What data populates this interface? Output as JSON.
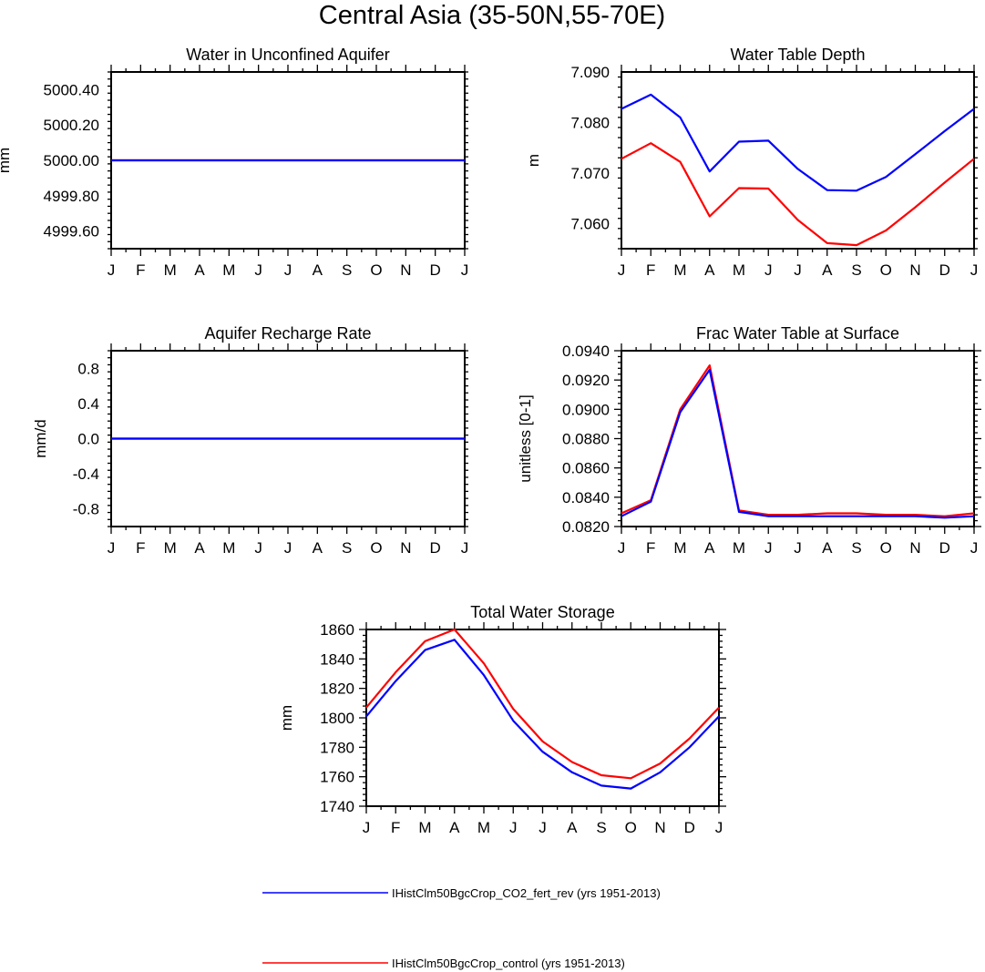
{
  "main_title": "Central Asia (35-50N,55-70E)",
  "colors": {
    "fert_rev": "#0000ff",
    "control": "#ff0000"
  },
  "legend": [
    {
      "label": "IHistClm50BgcCrop_CO2_fert_rev (yrs 1951-2013)",
      "color": "#0000ff"
    },
    {
      "label": "IHistClm50BgcCrop_control (yrs 1951-2013)",
      "color": "#ff0000"
    }
  ],
  "chart_data": [
    {
      "type": "line",
      "title": "Water in Unconfined Aquifer",
      "xlabel": "",
      "ylabel": "mm",
      "categories": [
        "J",
        "F",
        "M",
        "A",
        "M",
        "J",
        "J",
        "A",
        "S",
        "O",
        "N",
        "D",
        "J"
      ],
      "ylim": [
        4999.5,
        5000.5
      ],
      "yticks": [
        4999.6,
        4999.8,
        5000.0,
        5000.2,
        5000.4
      ],
      "yticklabels": [
        "4999.60",
        "4999.80",
        "5000.00",
        "5000.20",
        "5000.40"
      ],
      "series": [
        {
          "key": "control",
          "values": [
            5000,
            5000,
            5000,
            5000,
            5000,
            5000,
            5000,
            5000,
            5000,
            5000,
            5000,
            5000,
            5000
          ]
        },
        {
          "key": "fert_rev",
          "values": [
            5000,
            5000,
            5000,
            5000,
            5000,
            5000,
            5000,
            5000,
            5000,
            5000,
            5000,
            5000,
            5000
          ]
        }
      ]
    },
    {
      "type": "line",
      "title": "Water Table Depth",
      "xlabel": "",
      "ylabel": "m",
      "categories": [
        "J",
        "F",
        "M",
        "A",
        "M",
        "J",
        "J",
        "A",
        "S",
        "O",
        "N",
        "D",
        "J"
      ],
      "ylim": [
        7.055,
        7.09
      ],
      "yticks": [
        7.06,
        7.07,
        7.08,
        7.09
      ],
      "yticklabels": [
        "7.060",
        "7.070",
        "7.080",
        "7.090"
      ],
      "series": [
        {
          "key": "fert_rev",
          "values": [
            7.0827,
            7.0855,
            7.081,
            7.0703,
            7.0762,
            7.0764,
            7.0708,
            7.0666,
            7.0665,
            7.0692,
            7.0737,
            7.0783,
            7.0827
          ]
        },
        {
          "key": "control",
          "values": [
            7.0728,
            7.0759,
            7.0722,
            7.0614,
            7.067,
            7.0669,
            7.0607,
            7.0561,
            7.0557,
            7.0586,
            7.0632,
            7.0681,
            7.0728
          ]
        }
      ]
    },
    {
      "type": "line",
      "title": "Aquifer Recharge Rate",
      "xlabel": "",
      "ylabel": "mm/d",
      "categories": [
        "J",
        "F",
        "M",
        "A",
        "M",
        "J",
        "J",
        "A",
        "S",
        "O",
        "N",
        "D",
        "J"
      ],
      "ylim": [
        -1.0,
        1.0
      ],
      "yticks": [
        -0.8,
        -0.4,
        0.0,
        0.4,
        0.8
      ],
      "yticklabels": [
        "-0.8",
        "-0.4",
        "0.0",
        "0.4",
        "0.8"
      ],
      "series": [
        {
          "key": "control",
          "values": [
            0,
            0,
            0,
            0,
            0,
            0,
            0,
            0,
            0,
            0,
            0,
            0,
            0
          ]
        },
        {
          "key": "fert_rev",
          "values": [
            0,
            0,
            0,
            0,
            0,
            0,
            0,
            0,
            0,
            0,
            0,
            0,
            0
          ]
        }
      ]
    },
    {
      "type": "line",
      "title": "Frac Water Table at Surface",
      "xlabel": "",
      "ylabel": "unitless [0-1]",
      "categories": [
        "J",
        "F",
        "M",
        "A",
        "M",
        "J",
        "J",
        "A",
        "S",
        "O",
        "N",
        "D",
        "J"
      ],
      "ylim": [
        0.082,
        0.094
      ],
      "yticks": [
        0.082,
        0.084,
        0.086,
        0.088,
        0.09,
        0.092,
        0.094
      ],
      "yticklabels": [
        "0.0820",
        "0.0840",
        "0.0860",
        "0.0880",
        "0.0900",
        "0.0920",
        "0.0940"
      ],
      "series": [
        {
          "key": "control",
          "values": [
            0.0829,
            0.0838,
            0.09,
            0.093,
            0.0831,
            0.0828,
            0.0828,
            0.0829,
            0.0829,
            0.0828,
            0.0828,
            0.0827,
            0.0829
          ]
        },
        {
          "key": "fert_rev",
          "values": [
            0.0827,
            0.0837,
            0.0898,
            0.0927,
            0.083,
            0.0827,
            0.0827,
            0.0827,
            0.0827,
            0.0827,
            0.0827,
            0.0826,
            0.0827
          ]
        }
      ]
    },
    {
      "type": "line",
      "title": "Total Water Storage",
      "xlabel": "",
      "ylabel": "mm",
      "categories": [
        "J",
        "F",
        "M",
        "A",
        "M",
        "J",
        "J",
        "A",
        "S",
        "O",
        "N",
        "D",
        "J"
      ],
      "ylim": [
        1740,
        1860
      ],
      "yticks": [
        1740,
        1760,
        1780,
        1800,
        1820,
        1840,
        1860
      ],
      "yticklabels": [
        "1740",
        "1760",
        "1780",
        "1800",
        "1820",
        "1840",
        "1860"
      ],
      "series": [
        {
          "key": "fert_rev",
          "values": [
            1801,
            1825,
            1846,
            1853,
            1829,
            1798,
            1777,
            1763,
            1754,
            1752,
            1763,
            1780,
            1801
          ]
        },
        {
          "key": "control",
          "values": [
            1807,
            1831,
            1852,
            1860,
            1837,
            1806,
            1784,
            1770,
            1761,
            1759,
            1769,
            1786,
            1807
          ]
        }
      ]
    }
  ]
}
